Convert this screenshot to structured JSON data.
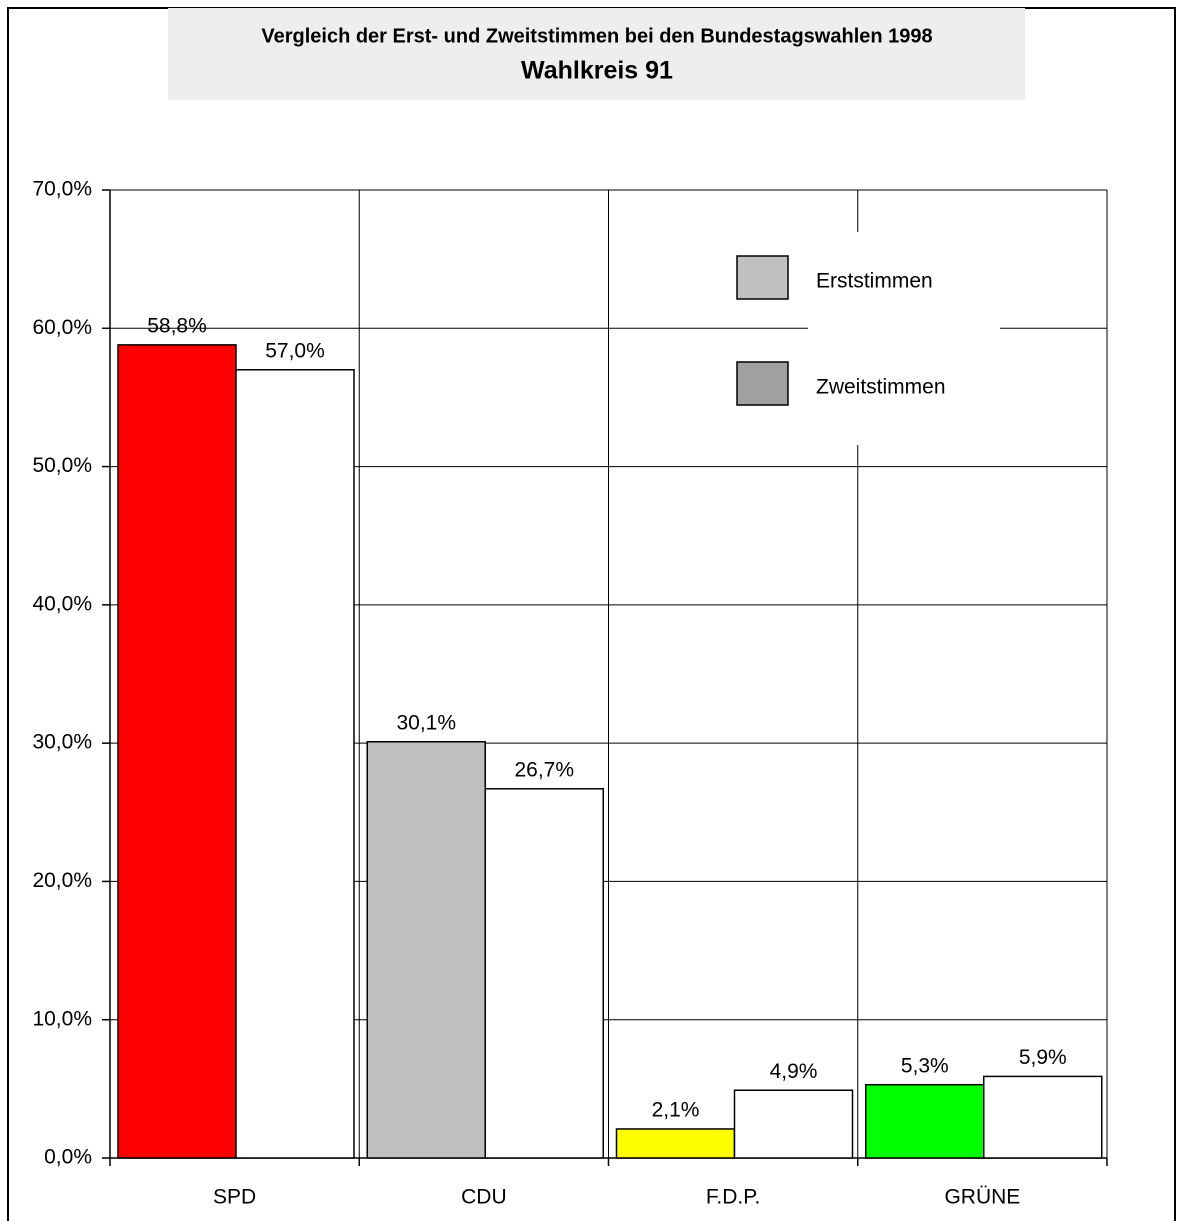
{
  "chart_data": {
    "type": "bar",
    "title": "Vergleich der Erst- und Zweitstimmen bei den Bundestagswahlen 1998",
    "subtitle": "Wahlkreis 91",
    "categories": [
      "SPD",
      "CDU",
      "F.D.P.",
      "GRÜNE"
    ],
    "series": [
      {
        "name": "Erststimmen",
        "color": "#c0c0c0",
        "bar_colors": [
          "#ff0000",
          "#c0c0c0",
          "#ffff00",
          "#00ff00"
        ],
        "values": [
          58.8,
          30.1,
          2.1,
          5.3
        ],
        "value_labels": [
          "58,8%",
          "30,1%",
          "2,1%",
          "5,3%"
        ]
      },
      {
        "name": "Zweitstimmen",
        "color": "#a0a0a0",
        "bar_colors": [
          "#ffffff",
          "#ffffff",
          "#ffffff",
          "#ffffff"
        ],
        "values": [
          57.0,
          26.7,
          4.9,
          5.9
        ],
        "value_labels": [
          "57,0%",
          "26,7%",
          "4,9%",
          "5,9%"
        ]
      }
    ],
    "ylim": [
      0,
      70
    ],
    "yticks": [
      {
        "value": 0,
        "label": "0,0%"
      },
      {
        "value": 10,
        "label": "10,0%"
      },
      {
        "value": 20,
        "label": "20,0%"
      },
      {
        "value": 30,
        "label": "30,0%"
      },
      {
        "value": 40,
        "label": "40,0%"
      },
      {
        "value": 50,
        "label": "50,0%"
      },
      {
        "value": 60,
        "label": "60,0%"
      },
      {
        "value": 70,
        "label": "70,0%"
      }
    ],
    "grid": true,
    "legend": "upper right"
  }
}
